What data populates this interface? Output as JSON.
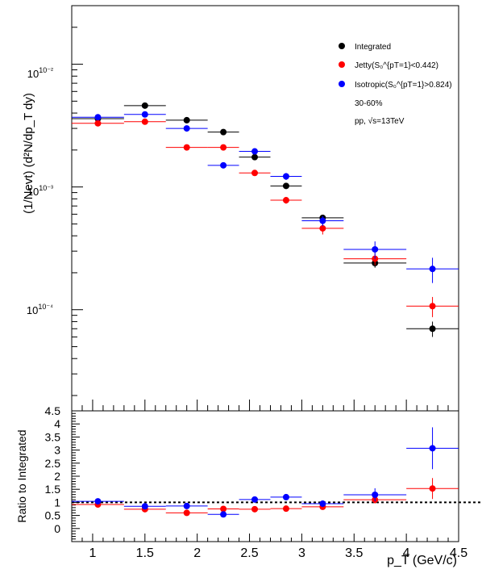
{
  "chart_data": [
    {
      "type": "scatter",
      "panel": "top",
      "yscale": "log",
      "ylabel": "(1/Nevt) (d²N/dp_T dy)",
      "xlim": [
        0.8,
        4.5
      ],
      "ylim": [
        1.5e-05,
        0.03
      ],
      "y_tick_labels": [
        "10⁻²",
        "10⁻³",
        "10⁻⁴"
      ],
      "legend": {
        "placement": "top-right",
        "entries": [
          {
            "label": "Integrated",
            "color": "#000000"
          },
          {
            "label": "Jetty(S₀^{pT=1}<0.442)",
            "color": "#ff0000"
          },
          {
            "label": "Isotropic(S₀^{pT=1}>0.824)",
            "color": "#0000ff"
          }
        ],
        "notes": [
          "30-60%",
          "pp, √s=13TeV"
        ]
      },
      "series": [
        {
          "name": "Integrated",
          "color": "#000000",
          "points": [
            {
              "x": 1.05,
              "xerr": 0.25,
              "y": 0.0036,
              "yerr": 0.0001
            },
            {
              "x": 1.5,
              "xerr": 0.2,
              "y": 0.0046,
              "yerr": 0.00015
            },
            {
              "x": 1.9,
              "xerr": 0.2,
              "y": 0.0035,
              "yerr": 0.0001
            },
            {
              "x": 2.25,
              "xerr": 0.15,
              "y": 0.0028,
              "yerr": 0.0001
            },
            {
              "x": 2.55,
              "xerr": 0.15,
              "y": 0.00175,
              "yerr": 7e-05
            },
            {
              "x": 2.85,
              "xerr": 0.15,
              "y": 0.00102,
              "yerr": 5e-05
            },
            {
              "x": 3.2,
              "xerr": 0.2,
              "y": 0.00056,
              "yerr": 3e-05
            },
            {
              "x": 3.7,
              "xerr": 0.3,
              "y": 0.00024,
              "yerr": 2e-05
            },
            {
              "x": 4.25,
              "xerr": 0.25,
              "y": 7e-05,
              "yerr": 1e-05
            }
          ]
        },
        {
          "name": "Jetty(S₀^{pT=1}<0.442)",
          "color": "#ff0000",
          "points": [
            {
              "x": 1.05,
              "xerr": 0.25,
              "y": 0.0033,
              "yerr": 0.0001
            },
            {
              "x": 1.5,
              "xerr": 0.2,
              "y": 0.0034,
              "yerr": 0.0001
            },
            {
              "x": 1.9,
              "xerr": 0.2,
              "y": 0.0021,
              "yerr": 8e-05
            },
            {
              "x": 2.25,
              "xerr": 0.15,
              "y": 0.0021,
              "yerr": 8e-05
            },
            {
              "x": 2.55,
              "xerr": 0.15,
              "y": 0.0013,
              "yerr": 5e-05
            },
            {
              "x": 2.85,
              "xerr": 0.15,
              "y": 0.00078,
              "yerr": 5e-05
            },
            {
              "x": 3.2,
              "xerr": 0.2,
              "y": 0.00046,
              "yerr": 5e-05
            },
            {
              "x": 3.7,
              "xerr": 0.3,
              "y": 0.00026,
              "yerr": 3e-05
            },
            {
              "x": 4.25,
              "xerr": 0.25,
              "y": 0.000107,
              "yerr": 2e-05
            }
          ]
        },
        {
          "name": "Isotropic(S₀^{pT=1}>0.824)",
          "color": "#0000ff",
          "points": [
            {
              "x": 1.05,
              "xerr": 0.25,
              "y": 0.0037,
              "yerr": 0.00015
            },
            {
              "x": 1.5,
              "xerr": 0.2,
              "y": 0.0039,
              "yerr": 0.00015
            },
            {
              "x": 1.9,
              "xerr": 0.2,
              "y": 0.003,
              "yerr": 0.0001
            },
            {
              "x": 2.25,
              "xerr": 0.15,
              "y": 0.0015,
              "yerr": 7e-05
            },
            {
              "x": 2.55,
              "xerr": 0.15,
              "y": 0.00195,
              "yerr": 0.0001
            },
            {
              "x": 2.85,
              "xerr": 0.15,
              "y": 0.00122,
              "yerr": 8e-05
            },
            {
              "x": 3.2,
              "xerr": 0.2,
              "y": 0.00053,
              "yerr": 5e-05
            },
            {
              "x": 3.7,
              "xerr": 0.3,
              "y": 0.00031,
              "yerr": 5e-05
            },
            {
              "x": 4.25,
              "xerr": 0.25,
              "y": 0.000215,
              "yerr": 5e-05
            }
          ]
        }
      ]
    },
    {
      "type": "scatter",
      "panel": "bottom",
      "xlabel": "p_T (GeV/c)",
      "ylabel": "Ratio to Integrated",
      "xlim": [
        0.8,
        4.5
      ],
      "ylim": [
        -0.5,
        4.5
      ],
      "x_ticks": [
        1,
        1.5,
        2,
        2.5,
        3,
        3.5,
        4,
        4.5
      ],
      "x_tick_labels": [
        "1",
        "1.5",
        "2",
        "2.5",
        "3",
        "3.5",
        "4",
        "4.5"
      ],
      "y_ticks": [
        0,
        0.5,
        1,
        1.5,
        2,
        2.5,
        3,
        3.5,
        4,
        4.5
      ],
      "y_tick_labels": [
        "0",
        "0.5",
        "1",
        "1.5",
        "2",
        "2.5",
        "3",
        "3.5",
        "4",
        "4.5"
      ],
      "reference_line": {
        "y": 1,
        "style": "dotted"
      },
      "series": [
        {
          "name": "Jetty(S₀^{pT=1}<0.442)",
          "color": "#ff0000",
          "points": [
            {
              "x": 1.05,
              "xerr": 0.25,
              "y": 0.92,
              "yerr": 0.05
            },
            {
              "x": 1.5,
              "xerr": 0.2,
              "y": 0.74,
              "yerr": 0.05
            },
            {
              "x": 1.9,
              "xerr": 0.2,
              "y": 0.6,
              "yerr": 0.05
            },
            {
              "x": 2.25,
              "xerr": 0.15,
              "y": 0.75,
              "yerr": 0.05
            },
            {
              "x": 2.55,
              "xerr": 0.15,
              "y": 0.74,
              "yerr": 0.05
            },
            {
              "x": 2.85,
              "xerr": 0.15,
              "y": 0.76,
              "yerr": 0.05
            },
            {
              "x": 3.2,
              "xerr": 0.2,
              "y": 0.83,
              "yerr": 0.08
            },
            {
              "x": 3.7,
              "xerr": 0.3,
              "y": 1.1,
              "yerr": 0.15
            },
            {
              "x": 4.25,
              "xerr": 0.25,
              "y": 1.53,
              "yerr": 0.4
            }
          ]
        },
        {
          "name": "Isotropic(S₀^{pT=1}>0.824)",
          "color": "#0000ff",
          "points": [
            {
              "x": 1.05,
              "xerr": 0.25,
              "y": 1.04,
              "yerr": 0.06
            },
            {
              "x": 1.5,
              "xerr": 0.2,
              "y": 0.85,
              "yerr": 0.05
            },
            {
              "x": 1.9,
              "xerr": 0.2,
              "y": 0.86,
              "yerr": 0.05
            },
            {
              "x": 2.25,
              "xerr": 0.15,
              "y": 0.54,
              "yerr": 0.04
            },
            {
              "x": 2.55,
              "xerr": 0.15,
              "y": 1.11,
              "yerr": 0.07
            },
            {
              "x": 2.85,
              "xerr": 0.15,
              "y": 1.2,
              "yerr": 0.08
            },
            {
              "x": 3.2,
              "xerr": 0.2,
              "y": 0.95,
              "yerr": 0.1
            },
            {
              "x": 3.7,
              "xerr": 0.3,
              "y": 1.29,
              "yerr": 0.25
            },
            {
              "x": 4.25,
              "xerr": 0.25,
              "y": 3.07,
              "yerr": 0.8
            }
          ]
        }
      ]
    }
  ]
}
